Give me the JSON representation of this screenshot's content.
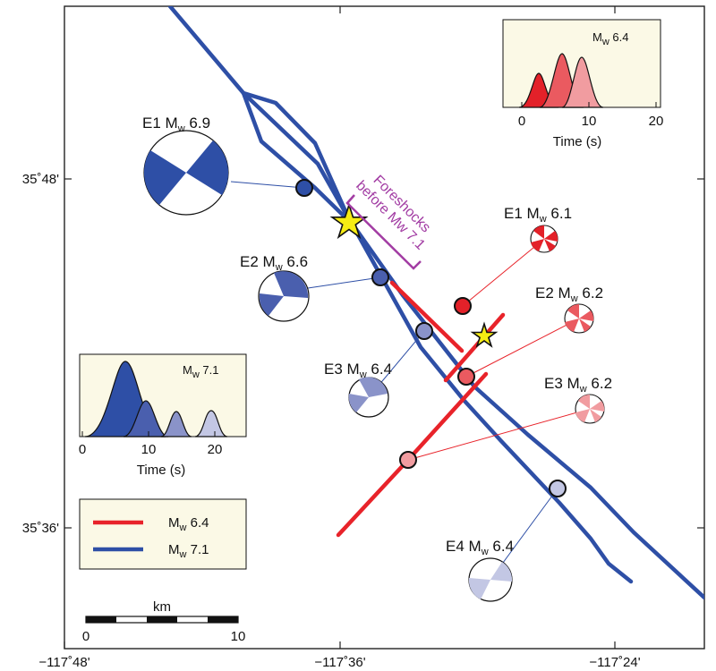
{
  "map": {
    "colors": {
      "mw64": "#e8232a",
      "mw71": "#2e4fa6",
      "foreshock": "#a23ca3",
      "star": "#f6ec13",
      "inset_bg": "#fbf9e6"
    },
    "axes": {
      "x_ticks": [
        "−117˚48'",
        "−117˚36'",
        "−117˚24'"
      ],
      "y_ticks": [
        "35˚48'",
        "35˚36'"
      ]
    },
    "legend": [
      {
        "label_main": "M",
        "label_sub": "w",
        "label_rest": " 6.4",
        "color": "#e8232a"
      },
      {
        "label_main": "M",
        "label_sub": "w",
        "label_rest": " 7.1",
        "color": "#2e4fa6"
      }
    ],
    "scale_bar": {
      "label": "km",
      "min": "0",
      "max": "10"
    },
    "annotation": {
      "line1": "Foreshocks",
      "line2": "before Mw 7.1"
    },
    "events_71": [
      {
        "id": "E1",
        "mag": "6.9",
        "fill": "#2e4fa6"
      },
      {
        "id": "E2",
        "mag": "6.6",
        "fill": "#4a5fae"
      },
      {
        "id": "E3",
        "mag": "6.4",
        "fill": "#8a93c9"
      },
      {
        "id": "E4",
        "mag": "6.4",
        "fill": "#c3c7e4"
      }
    ],
    "events_64": [
      {
        "id": "E1",
        "mag": "6.1",
        "fill": "#e32129"
      },
      {
        "id": "E2",
        "mag": "6.2",
        "fill": "#ea5a60"
      },
      {
        "id": "E3",
        "mag": "6.2",
        "fill": "#f19ca0"
      }
    ],
    "inset_64": {
      "tag_main": "M",
      "tag_sub": "w",
      "tag_rest": " 6.4",
      "xlabel": "Time (s)",
      "xticks": [
        "0",
        "10",
        "20"
      ]
    },
    "inset_71": {
      "tag_main": "M",
      "tag_sub": "w",
      "tag_rest": " 7.1",
      "xlabel": "Time (s)",
      "xticks": [
        "0",
        "10",
        "20"
      ]
    },
    "label_prefix": "M",
    "label_sub": "w"
  }
}
